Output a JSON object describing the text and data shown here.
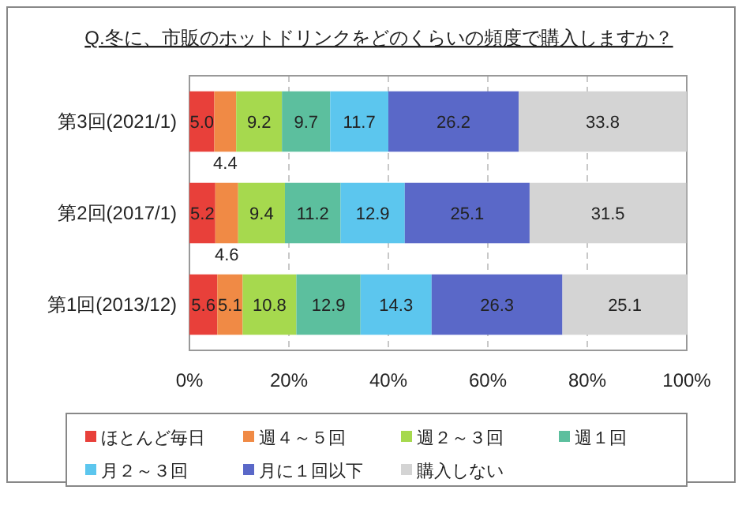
{
  "chart_data": {
    "type": "bar",
    "orientation": "horizontal",
    "stacked": true,
    "title": "Q.冬に、市販のホットドリンクをどのくらいの頻度で購入しますか？",
    "categories": [
      "第3回(2021/1)",
      "第2回(2017/1)",
      "第1回(2013/12)"
    ],
    "series": [
      {
        "name": "ほとんど毎日",
        "color": "#e8403a",
        "values": [
          5.0,
          5.2,
          5.6
        ],
        "value_labels": [
          "5.0",
          "5.2",
          "5.6"
        ]
      },
      {
        "name": "週４～５回",
        "color": "#f08a45",
        "values": [
          4.4,
          4.6,
          5.1
        ],
        "value_labels": [
          "4.4",
          "4.6",
          "5.1"
        ]
      },
      {
        "name": "週２～３回",
        "color": "#a6d94e",
        "values": [
          9.2,
          9.4,
          10.8
        ],
        "value_labels": [
          "9.2",
          "9.4",
          "10.8"
        ]
      },
      {
        "name": "週１回",
        "color": "#5cbf9e",
        "values": [
          9.7,
          11.2,
          12.9
        ],
        "value_labels": [
          "9.7",
          "11.2",
          "12.9"
        ]
      },
      {
        "name": "月２～３回",
        "color": "#5cc6ee",
        "values": [
          11.7,
          12.9,
          14.3
        ],
        "value_labels": [
          "11.7",
          "12.9",
          "14.3"
        ]
      },
      {
        "name": "月に１回以下",
        "color": "#5a68c8",
        "values": [
          26.2,
          25.1,
          26.3
        ],
        "value_labels": [
          "26.2",
          "25.1",
          "26.3"
        ]
      },
      {
        "name": "購入しない",
        "color": "#d4d4d4",
        "values": [
          33.8,
          31.5,
          25.1
        ],
        "value_labels": [
          "33.8",
          "31.5",
          "25.1"
        ]
      }
    ],
    "xlim": [
      0,
      100
    ],
    "xticks": [
      {
        "value": 0,
        "label": "0%"
      },
      {
        "value": 20,
        "label": "20%"
      },
      {
        "value": 40,
        "label": "40%"
      },
      {
        "value": 60,
        "label": "60%"
      },
      {
        "value": 80,
        "label": "80%"
      },
      {
        "value": 100,
        "label": "100%"
      }
    ],
    "grid": "x",
    "legend": "bottom"
  }
}
